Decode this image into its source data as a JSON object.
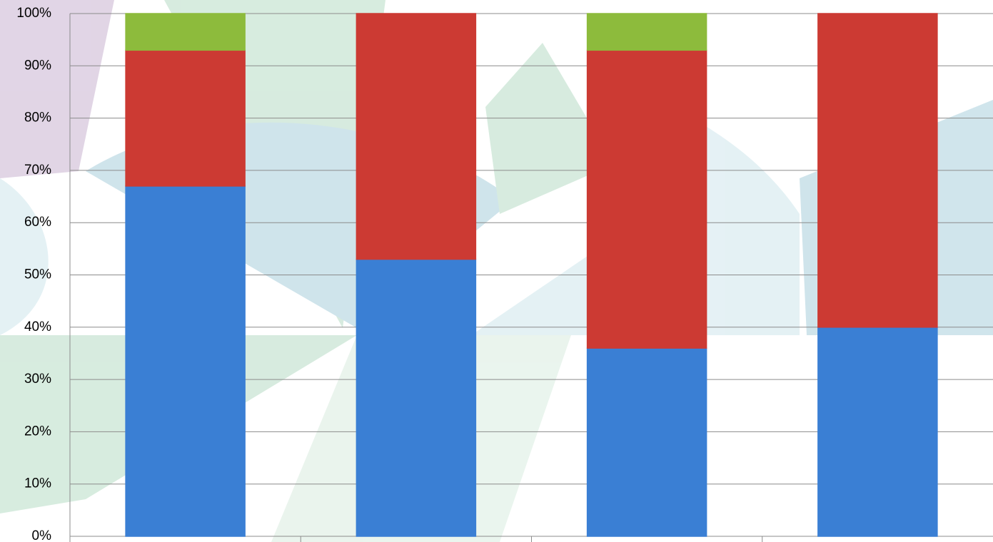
{
  "chart_data": {
    "type": "stacked-bar",
    "categories": [
      null,
      null,
      null,
      null
    ],
    "series": [
      {
        "color": "#3a7fd4",
        "values": [
          67,
          53,
          36,
          40
        ]
      },
      {
        "color": "#cc3a33",
        "values": [
          26,
          47,
          57,
          60
        ]
      },
      {
        "color": "#8dbb3c",
        "values": [
          7,
          0,
          7,
          0
        ]
      }
    ],
    "ylim": [
      0,
      100
    ],
    "yticks": [
      {
        "value": 0,
        "label": "0%"
      },
      {
        "value": 10,
        "label": "10%"
      },
      {
        "value": 20,
        "label": "20%"
      },
      {
        "value": 30,
        "label": "30%"
      },
      {
        "value": 40,
        "label": "40%"
      },
      {
        "value": 50,
        "label": "50%"
      },
      {
        "value": 60,
        "label": "60%"
      },
      {
        "value": 70,
        "label": "70%"
      },
      {
        "value": 80,
        "label": "80%"
      },
      {
        "value": 90,
        "label": "90%"
      },
      {
        "value": 100,
        "label": "100%"
      }
    ],
    "grid": true
  }
}
